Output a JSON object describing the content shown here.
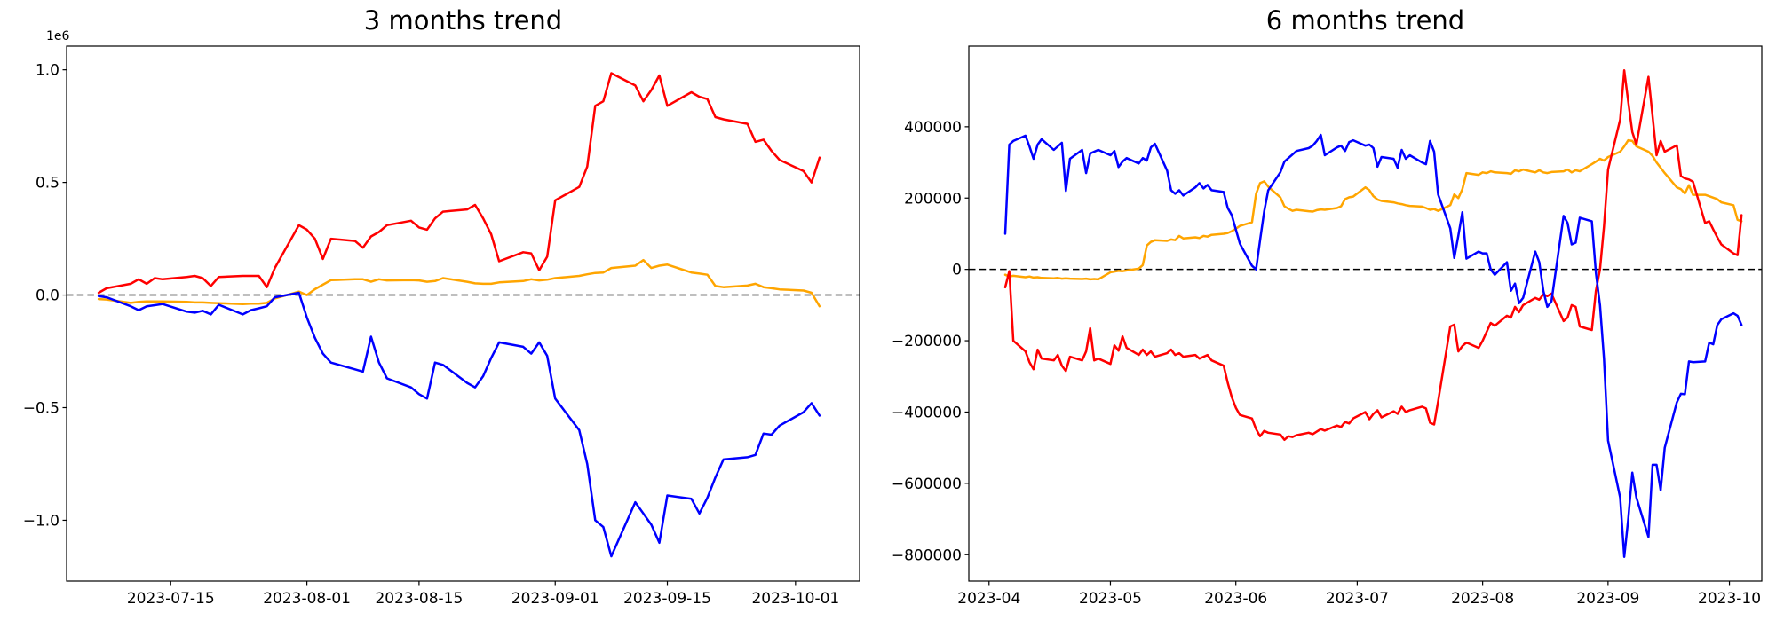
{
  "figure": {
    "background": "#ffffff",
    "text_color": "#000000"
  },
  "chart_data": [
    {
      "type": "line",
      "title": "3 months trend",
      "y_offset_label": "1e6",
      "grid": false,
      "legend": null,
      "zero_line": {
        "style": "dashed",
        "color": "#000000",
        "value": 0
      },
      "xlim": [
        "2023-07-02",
        "2023-10-09"
      ],
      "ylim": [
        -1270000,
        1105000
      ],
      "x_ticks": [
        {
          "date": "2023-07-15",
          "label": "2023-07-15"
        },
        {
          "date": "2023-08-01",
          "label": "2023-08-01"
        },
        {
          "date": "2023-08-15",
          "label": "2023-08-15"
        },
        {
          "date": "2023-09-01",
          "label": "2023-09-01"
        },
        {
          "date": "2023-09-15",
          "label": "2023-09-15"
        },
        {
          "date": "2023-10-01",
          "label": "2023-10-01"
        }
      ],
      "y_ticks": [
        {
          "value": 1000000,
          "label": "1.0"
        },
        {
          "value": 500000,
          "label": "0.5"
        },
        {
          "value": 0,
          "label": "0.0"
        },
        {
          "value": -500000,
          "label": "−0.5"
        },
        {
          "value": -1000000,
          "label": "−1.0"
        }
      ],
      "dates": [
        "2023-07-06",
        "2023-07-07",
        "2023-07-10",
        "2023-07-11",
        "2023-07-12",
        "2023-07-13",
        "2023-07-14",
        "2023-07-17",
        "2023-07-18",
        "2023-07-19",
        "2023-07-20",
        "2023-07-21",
        "2023-07-24",
        "2023-07-25",
        "2023-07-26",
        "2023-07-27",
        "2023-07-28",
        "2023-07-31",
        "2023-08-01",
        "2023-08-02",
        "2023-08-03",
        "2023-08-04",
        "2023-08-07",
        "2023-08-08",
        "2023-08-09",
        "2023-08-10",
        "2023-08-11",
        "2023-08-14",
        "2023-08-15",
        "2023-08-16",
        "2023-08-17",
        "2023-08-18",
        "2023-08-21",
        "2023-08-22",
        "2023-08-23",
        "2023-08-24",
        "2023-08-25",
        "2023-08-28",
        "2023-08-29",
        "2023-08-30",
        "2023-08-31",
        "2023-09-01",
        "2023-09-04",
        "2023-09-05",
        "2023-09-06",
        "2023-09-07",
        "2023-09-08",
        "2023-09-11",
        "2023-09-12",
        "2023-09-13",
        "2023-09-14",
        "2023-09-15",
        "2023-09-18",
        "2023-09-19",
        "2023-09-20",
        "2023-09-21",
        "2023-09-22",
        "2023-09-25",
        "2023-09-26",
        "2023-09-27",
        "2023-09-28",
        "2023-09-29",
        "2023-10-02",
        "2023-10-03",
        "2023-10-04"
      ],
      "series": [
        {
          "name": "orange",
          "color": "#ffa500",
          "values": [
            -18000,
            -20000,
            -35000,
            -30000,
            -28000,
            -28000,
            -28000,
            -30000,
            -33000,
            -33000,
            -35000,
            -36000,
            -40000,
            -38000,
            -38000,
            -35000,
            -15000,
            15000,
            0,
            26000,
            46000,
            66000,
            70000,
            70000,
            59000,
            70000,
            65000,
            66000,
            65000,
            59000,
            62000,
            75000,
            59000,
            52000,
            50000,
            50000,
            56000,
            62000,
            70000,
            65000,
            68000,
            75000,
            85000,
            92000,
            98000,
            100000,
            120000,
            130000,
            155000,
            120000,
            130000,
            135000,
            100000,
            95000,
            90000,
            40000,
            35000,
            42000,
            50000,
            35000,
            30000,
            25000,
            20000,
            10000,
            -50000
          ]
        },
        {
          "name": "red",
          "color": "#ff0000",
          "values": [
            10000,
            30000,
            50000,
            70000,
            50000,
            75000,
            70000,
            80000,
            85000,
            75000,
            40000,
            80000,
            85000,
            85000,
            85000,
            35000,
            120000,
            310000,
            290000,
            250000,
            160000,
            250000,
            240000,
            210000,
            260000,
            280000,
            310000,
            330000,
            300000,
            290000,
            340000,
            370000,
            380000,
            400000,
            340000,
            270000,
            150000,
            190000,
            185000,
            110000,
            170000,
            420000,
            480000,
            570000,
            840000,
            860000,
            985000,
            930000,
            860000,
            910000,
            975000,
            840000,
            900000,
            880000,
            870000,
            790000,
            780000,
            760000,
            680000,
            690000,
            640000,
            600000,
            550000,
            500000,
            610000
          ]
        },
        {
          "name": "blue",
          "color": "#0000ff",
          "values": [
            -5000,
            -10000,
            -50000,
            -67000,
            -50000,
            -45000,
            -40000,
            -74000,
            -78000,
            -70000,
            -86000,
            -43000,
            -86000,
            -67000,
            -59000,
            -50000,
            -10000,
            10000,
            -100000,
            -190000,
            -260000,
            -300000,
            -330000,
            -340000,
            -185000,
            -300000,
            -370000,
            -410000,
            -440000,
            -460000,
            -300000,
            -310000,
            -390000,
            -410000,
            -360000,
            -280000,
            -210000,
            -230000,
            -260000,
            -210000,
            -270000,
            -460000,
            -600000,
            -750000,
            -1000000,
            -1030000,
            -1160000,
            -920000,
            -970000,
            -1020000,
            -1100000,
            -890000,
            -905000,
            -970000,
            -900000,
            -810000,
            -730000,
            -720000,
            -710000,
            -615000,
            -620000,
            -580000,
            -520000,
            -480000,
            -535000
          ]
        }
      ]
    },
    {
      "type": "line",
      "title": "6 months trend",
      "y_offset_label": "",
      "grid": false,
      "legend": null,
      "zero_line": {
        "style": "dashed",
        "color": "#000000",
        "value": 0
      },
      "xlim": [
        "2023-03-27",
        "2023-10-09"
      ],
      "ylim": [
        -874000,
        626000
      ],
      "x_ticks": [
        {
          "date": "2023-04-01",
          "label": "2023-04"
        },
        {
          "date": "2023-05-01",
          "label": "2023-05"
        },
        {
          "date": "2023-06-01",
          "label": "2023-06"
        },
        {
          "date": "2023-07-01",
          "label": "2023-07"
        },
        {
          "date": "2023-08-01",
          "label": "2023-08"
        },
        {
          "date": "2023-09-01",
          "label": "2023-09"
        },
        {
          "date": "2023-10-01",
          "label": "2023-10"
        }
      ],
      "y_ticks": [
        {
          "value": 400000,
          "label": "400000"
        },
        {
          "value": 200000,
          "label": "200000"
        },
        {
          "value": 0,
          "label": "0"
        },
        {
          "value": -200000,
          "label": "−200000"
        },
        {
          "value": -400000,
          "label": "−400000"
        },
        {
          "value": -600000,
          "label": "−600000"
        },
        {
          "value": -800000,
          "label": "−800000"
        }
      ],
      "dates": [
        "2023-04-05",
        "2023-04-06",
        "2023-04-07",
        "2023-04-10",
        "2023-04-11",
        "2023-04-12",
        "2023-04-13",
        "2023-04-14",
        "2023-04-17",
        "2023-04-18",
        "2023-04-19",
        "2023-04-20",
        "2023-04-21",
        "2023-04-24",
        "2023-04-25",
        "2023-04-26",
        "2023-04-27",
        "2023-04-28",
        "2023-05-01",
        "2023-05-02",
        "2023-05-03",
        "2023-05-04",
        "2023-05-05",
        "2023-05-08",
        "2023-05-09",
        "2023-05-10",
        "2023-05-11",
        "2023-05-12",
        "2023-05-15",
        "2023-05-16",
        "2023-05-17",
        "2023-05-18",
        "2023-05-19",
        "2023-05-22",
        "2023-05-23",
        "2023-05-24",
        "2023-05-25",
        "2023-05-26",
        "2023-05-29",
        "2023-05-30",
        "2023-05-31",
        "2023-06-01",
        "2023-06-02",
        "2023-06-05",
        "2023-06-06",
        "2023-06-07",
        "2023-06-08",
        "2023-06-09",
        "2023-06-12",
        "2023-06-13",
        "2023-06-14",
        "2023-06-15",
        "2023-06-16",
        "2023-06-19",
        "2023-06-20",
        "2023-06-21",
        "2023-06-22",
        "2023-06-23",
        "2023-06-26",
        "2023-06-27",
        "2023-06-28",
        "2023-06-29",
        "2023-06-30",
        "2023-07-03",
        "2023-07-04",
        "2023-07-05",
        "2023-07-06",
        "2023-07-07",
        "2023-07-10",
        "2023-07-11",
        "2023-07-12",
        "2023-07-13",
        "2023-07-14",
        "2023-07-17",
        "2023-07-18",
        "2023-07-19",
        "2023-07-20",
        "2023-07-21",
        "2023-07-24",
        "2023-07-25",
        "2023-07-26",
        "2023-07-27",
        "2023-07-28",
        "2023-07-31",
        "2023-08-01",
        "2023-08-02",
        "2023-08-03",
        "2023-08-04",
        "2023-08-07",
        "2023-08-08",
        "2023-08-09",
        "2023-08-10",
        "2023-08-11",
        "2023-08-14",
        "2023-08-15",
        "2023-08-16",
        "2023-08-17",
        "2023-08-18",
        "2023-08-21",
        "2023-08-22",
        "2023-08-23",
        "2023-08-24",
        "2023-08-25",
        "2023-08-28",
        "2023-08-29",
        "2023-08-30",
        "2023-08-31",
        "2023-09-01",
        "2023-09-04",
        "2023-09-05",
        "2023-09-06",
        "2023-09-07",
        "2023-09-08",
        "2023-09-11",
        "2023-09-12",
        "2023-09-13",
        "2023-09-14",
        "2023-09-15",
        "2023-09-18",
        "2023-09-19",
        "2023-09-20",
        "2023-09-21",
        "2023-09-22",
        "2023-09-25",
        "2023-09-26",
        "2023-09-27",
        "2023-09-28",
        "2023-09-29",
        "2023-10-02",
        "2023-10-03",
        "2023-10-04"
      ],
      "series": [
        {
          "name": "orange",
          "color": "#ffa500",
          "values": [
            -15000,
            -20000,
            -18000,
            -22000,
            -20000,
            -23000,
            -22000,
            -24000,
            -25000,
            -24000,
            -26000,
            -25000,
            -26000,
            -27000,
            -26000,
            -28000,
            -27000,
            -28000,
            -8000,
            -6000,
            -4000,
            -5000,
            -3000,
            2000,
            12000,
            67000,
            77000,
            82000,
            80000,
            84000,
            82000,
            94000,
            87000,
            90000,
            88000,
            94000,
            92000,
            97000,
            100000,
            102000,
            107000,
            114000,
            122000,
            132000,
            212000,
            242000,
            247000,
            232000,
            202000,
            177000,
            170000,
            164000,
            167000,
            163000,
            162000,
            166000,
            168000,
            167000,
            172000,
            177000,
            197000,
            202000,
            204000,
            230000,
            222000,
            205000,
            196000,
            192000,
            188000,
            185000,
            183000,
            180000,
            178000,
            176000,
            172000,
            167000,
            169000,
            164000,
            180000,
            210000,
            200000,
            225000,
            270000,
            265000,
            272000,
            270000,
            275000,
            272000,
            270000,
            268000,
            278000,
            275000,
            280000,
            272000,
            278000,
            272000,
            270000,
            273000,
            275000,
            280000,
            272000,
            278000,
            275000,
            295000,
            302000,
            310000,
            305000,
            315000,
            330000,
            345000,
            362000,
            360000,
            345000,
            330000,
            318000,
            300000,
            285000,
            270000,
            230000,
            225000,
            213000,
            236000,
            209000,
            209000,
            205000,
            201000,
            197000,
            188000,
            180000,
            139000,
            135000
          ]
        },
        {
          "name": "red",
          "color": "#ff0000",
          "values": [
            -50000,
            -5000,
            -200000,
            -230000,
            -260000,
            -280000,
            -225000,
            -250000,
            -255000,
            -240000,
            -270000,
            -285000,
            -245000,
            -255000,
            -230000,
            -165000,
            -255000,
            -250000,
            -265000,
            -213000,
            -228000,
            -188000,
            -220000,
            -240000,
            -225000,
            -240000,
            -230000,
            -245000,
            -235000,
            -225000,
            -240000,
            -235000,
            -245000,
            -240000,
            -250000,
            -245000,
            -240000,
            -255000,
            -270000,
            -318000,
            -358000,
            -388000,
            -408000,
            -418000,
            -448000,
            -468000,
            -453000,
            -458000,
            -463000,
            -478000,
            -468000,
            -470000,
            -465000,
            -458000,
            -462000,
            -455000,
            -448000,
            -452000,
            -438000,
            -442000,
            -428000,
            -432000,
            -418000,
            -400000,
            -420000,
            -405000,
            -395000,
            -415000,
            -398000,
            -405000,
            -385000,
            -400000,
            -395000,
            -385000,
            -390000,
            -430000,
            -435000,
            -370000,
            -160000,
            -155000,
            -230000,
            -215000,
            -205000,
            -220000,
            -200000,
            -175000,
            -150000,
            -158000,
            -130000,
            -135000,
            -105000,
            -120000,
            -100000,
            -80000,
            -85000,
            -70000,
            -75000,
            -68000,
            -145000,
            -135000,
            -100000,
            -105000,
            -160000,
            -170000,
            -60000,
            0,
            120000,
            280000,
            420000,
            558000,
            470000,
            385000,
            350000,
            540000,
            430000,
            320000,
            360000,
            330000,
            348000,
            262000,
            255000,
            252000,
            246000,
            130000,
            135000,
            112000,
            90000,
            70000,
            45000,
            40000,
            152000
          ]
        },
        {
          "name": "blue",
          "color": "#0000ff",
          "values": [
            100000,
            350000,
            360000,
            375000,
            345000,
            310000,
            350000,
            365000,
            335000,
            345000,
            355000,
            220000,
            310000,
            335000,
            270000,
            325000,
            330000,
            335000,
            320000,
            332000,
            287000,
            302000,
            312000,
            297000,
            312000,
            305000,
            342000,
            352000,
            277000,
            222000,
            212000,
            222000,
            207000,
            230000,
            242000,
            227000,
            237000,
            222000,
            217000,
            172000,
            152000,
            112000,
            72000,
            10000,
            0,
            82000,
            162000,
            222000,
            272000,
            302000,
            312000,
            322000,
            332000,
            340000,
            347000,
            360000,
            377000,
            320000,
            342000,
            347000,
            332000,
            357000,
            362000,
            347000,
            350000,
            340000,
            288000,
            315000,
            310000,
            285000,
            335000,
            310000,
            320000,
            300000,
            295000,
            360000,
            330000,
            210000,
            115000,
            32000,
            95000,
            160000,
            30000,
            50000,
            45000,
            45000,
            0,
            -15000,
            20000,
            -60000,
            -40000,
            -95000,
            -80000,
            50000,
            20000,
            -60000,
            -105000,
            -90000,
            150000,
            130000,
            70000,
            75000,
            145000,
            135000,
            -10000,
            -100000,
            -250000,
            -480000,
            -640000,
            -806000,
            -700000,
            -570000,
            -640000,
            -750000,
            -548000,
            -548000,
            -619000,
            -500000,
            -373000,
            -349000,
            -350000,
            -258000,
            -260000,
            -258000,
            -205000,
            -210000,
            -156000,
            -140000,
            -123000,
            -130000,
            -156000
          ]
        }
      ]
    }
  ]
}
